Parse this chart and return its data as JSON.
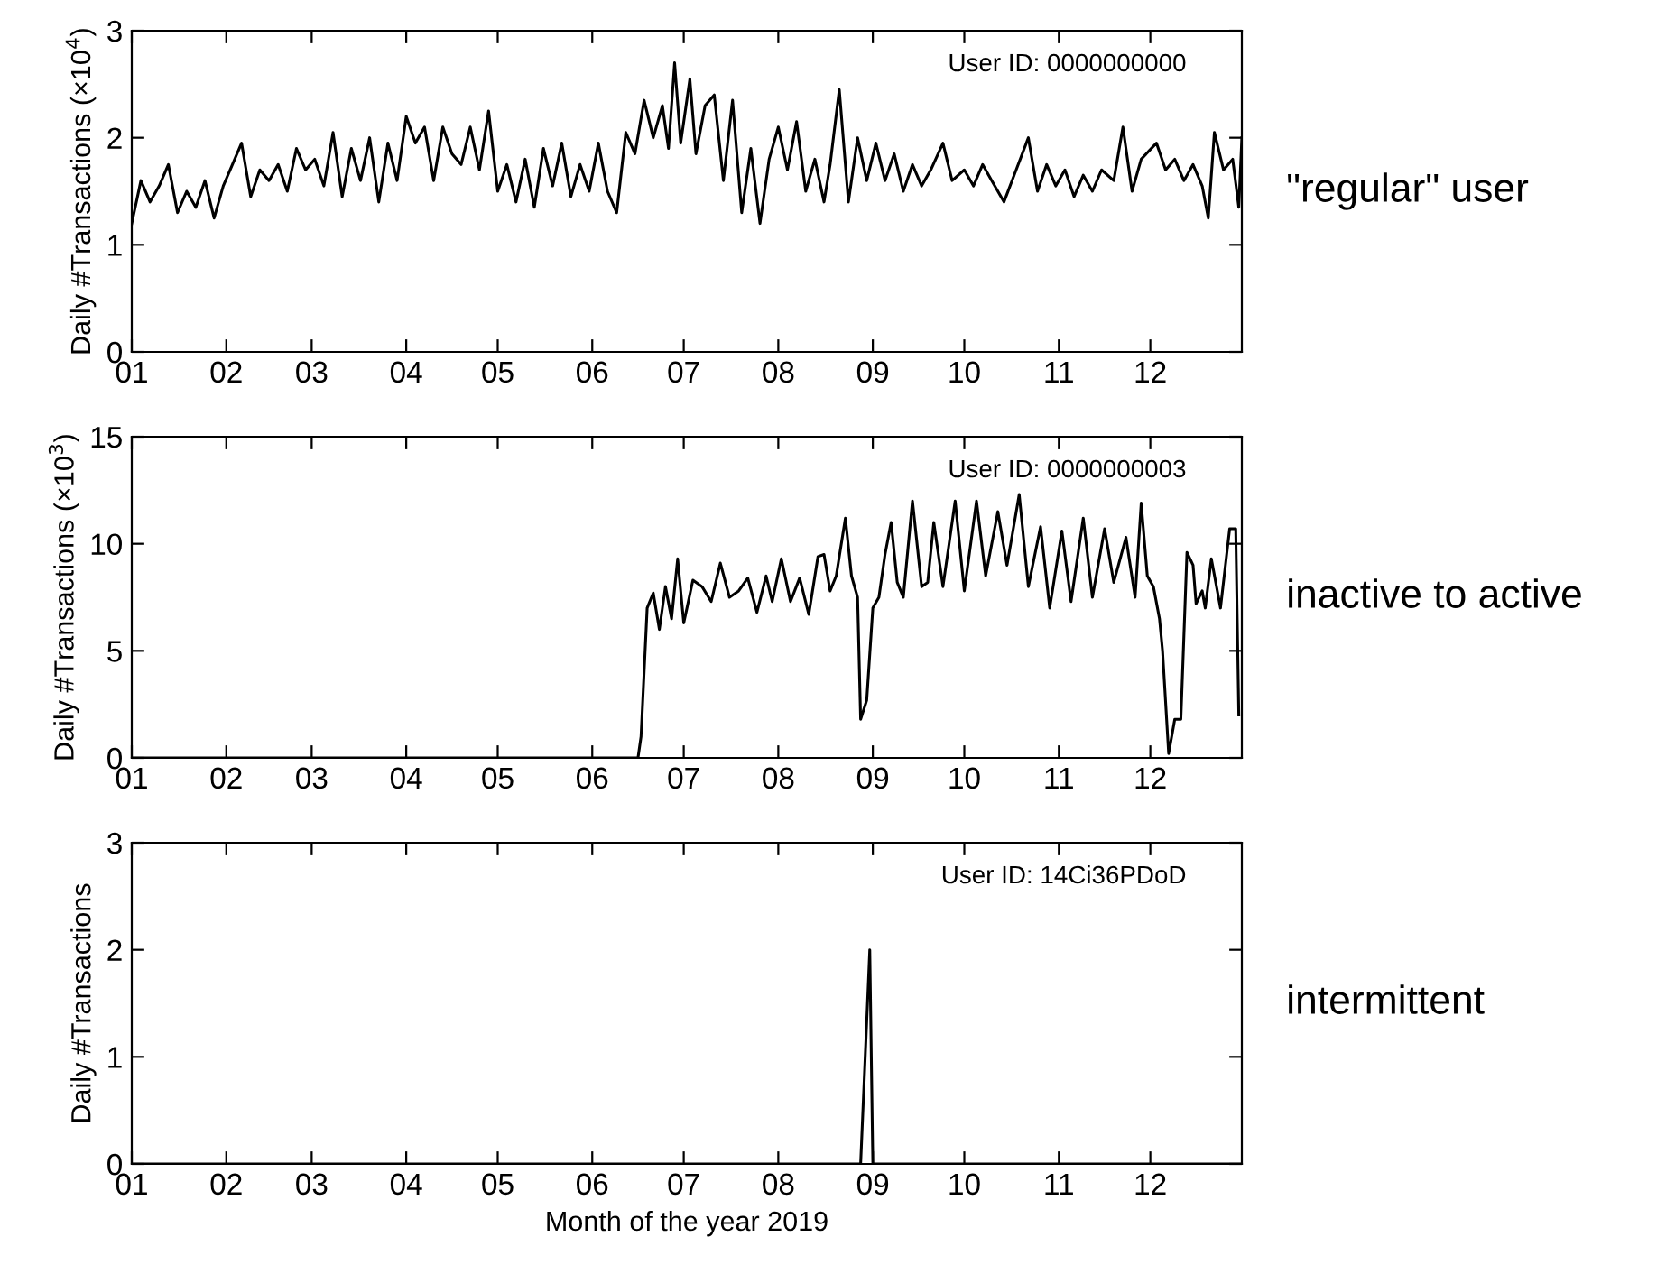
{
  "chart_data": [
    {
      "type": "line",
      "ylabel": "Daily #Transactions (×10$^{4}$)",
      "annotations": [
        "User ID: 0000000000",
        "\"regular\" user"
      ],
      "xlim": [
        "2019-01-01",
        "2019-12-31"
      ],
      "xticks": [
        {
          "value": "2019-01-01",
          "label": "01"
        },
        {
          "value": "2019-02-01",
          "label": "02"
        },
        {
          "value": "2019-03-01",
          "label": "03"
        },
        {
          "value": "2019-04-01",
          "label": "04"
        },
        {
          "value": "2019-05-01",
          "label": "05"
        },
        {
          "value": "2019-06-01",
          "label": "06"
        },
        {
          "value": "2019-07-01",
          "label": "07"
        },
        {
          "value": "2019-08-01",
          "label": "08"
        },
        {
          "value": "2019-09-01",
          "label": "09"
        },
        {
          "value": "2019-10-01",
          "label": "10"
        },
        {
          "value": "2019-11-01",
          "label": "11"
        },
        {
          "value": "2019-12-01",
          "label": "12"
        }
      ],
      "ylim": [
        0,
        3
      ],
      "yticks": [
        0,
        1,
        2,
        3
      ],
      "series": [
        {
          "color": "#000000",
          "x": [
            "2019-01-01",
            "2019-01-04",
            "2019-01-07",
            "2019-01-10",
            "2019-01-13",
            "2019-01-16",
            "2019-01-19",
            "2019-01-22",
            "2019-01-25",
            "2019-01-28",
            "2019-01-31",
            "2019-02-03",
            "2019-02-06",
            "2019-02-09",
            "2019-02-12",
            "2019-02-15",
            "2019-02-18",
            "2019-02-21",
            "2019-02-24",
            "2019-02-27",
            "2019-03-02",
            "2019-03-05",
            "2019-03-08",
            "2019-03-11",
            "2019-03-14",
            "2019-03-17",
            "2019-03-20",
            "2019-03-23",
            "2019-03-26",
            "2019-03-29",
            "2019-04-01",
            "2019-04-04",
            "2019-04-07",
            "2019-04-10",
            "2019-04-13",
            "2019-04-16",
            "2019-04-19",
            "2019-04-22",
            "2019-04-25",
            "2019-04-28",
            "2019-05-01",
            "2019-05-04",
            "2019-05-07",
            "2019-05-10",
            "2019-05-13",
            "2019-05-16",
            "2019-05-19",
            "2019-05-22",
            "2019-05-25",
            "2019-05-28",
            "2019-05-31",
            "2019-06-03",
            "2019-06-06",
            "2019-06-09",
            "2019-06-12",
            "2019-06-15",
            "2019-06-18",
            "2019-06-21",
            "2019-06-24",
            "2019-06-26",
            "2019-06-28",
            "2019-06-30",
            "2019-07-03",
            "2019-07-05",
            "2019-07-08",
            "2019-07-11",
            "2019-07-14",
            "2019-07-17",
            "2019-07-20",
            "2019-07-23",
            "2019-07-26",
            "2019-07-29",
            "2019-08-01",
            "2019-08-04",
            "2019-08-07",
            "2019-08-10",
            "2019-08-13",
            "2019-08-16",
            "2019-08-18",
            "2019-08-21",
            "2019-08-24",
            "2019-08-27",
            "2019-08-30",
            "2019-09-02",
            "2019-09-05",
            "2019-09-08",
            "2019-09-11",
            "2019-09-14",
            "2019-09-17",
            "2019-09-20",
            "2019-09-24",
            "2019-09-27",
            "2019-10-01",
            "2019-10-04",
            "2019-10-07",
            "2019-10-10",
            "2019-10-14",
            "2019-10-18",
            "2019-10-22",
            "2019-10-25",
            "2019-10-28",
            "2019-10-31",
            "2019-11-03",
            "2019-11-06",
            "2019-11-09",
            "2019-11-12",
            "2019-11-15",
            "2019-11-19",
            "2019-11-22",
            "2019-11-25",
            "2019-11-28",
            "2019-12-03",
            "2019-12-06",
            "2019-12-09",
            "2019-12-12",
            "2019-12-15",
            "2019-12-18",
            "2019-12-20",
            "2019-12-22",
            "2019-12-25",
            "2019-12-28",
            "2019-12-30",
            "2019-12-31"
          ],
          "values": [
            1.2,
            1.6,
            1.4,
            1.55,
            1.75,
            1.3,
            1.5,
            1.35,
            1.6,
            1.25,
            1.55,
            1.75,
            1.95,
            1.45,
            1.7,
            1.6,
            1.75,
            1.5,
            1.9,
            1.7,
            1.8,
            1.55,
            2.05,
            1.45,
            1.9,
            1.6,
            2.0,
            1.4,
            1.95,
            1.6,
            2.2,
            1.95,
            2.1,
            1.6,
            2.1,
            1.85,
            1.75,
            2.1,
            1.7,
            2.25,
            1.5,
            1.75,
            1.4,
            1.8,
            1.35,
            1.9,
            1.55,
            1.95,
            1.45,
            1.75,
            1.5,
            1.95,
            1.5,
            1.3,
            2.05,
            1.85,
            2.35,
            2.0,
            2.3,
            1.9,
            2.7,
            1.95,
            2.55,
            1.85,
            2.3,
            2.4,
            1.6,
            2.35,
            1.3,
            1.9,
            1.2,
            1.8,
            2.1,
            1.7,
            2.15,
            1.5,
            1.8,
            1.4,
            1.75,
            2.45,
            1.4,
            2.0,
            1.6,
            1.95,
            1.6,
            1.85,
            1.5,
            1.75,
            1.55,
            1.7,
            1.95,
            1.6,
            1.7,
            1.55,
            1.75,
            1.6,
            1.4,
            1.7,
            2.0,
            1.5,
            1.75,
            1.55,
            1.7,
            1.45,
            1.65,
            1.5,
            1.7,
            1.6,
            2.1,
            1.5,
            1.8,
            1.95,
            1.7,
            1.8,
            1.6,
            1.75,
            1.55,
            1.25,
            2.05,
            1.7,
            1.8,
            1.35,
            2.0
          ]
        }
      ]
    },
    {
      "type": "line",
      "ylabel": "Daily #Transactions (×10$^{3}$)",
      "annotations": [
        "User ID: 0000000003",
        "inactive to active"
      ],
      "xlim": [
        "2019-01-01",
        "2019-12-31"
      ],
      "xticks": [
        {
          "value": "2019-01-01",
          "label": "01"
        },
        {
          "value": "2019-02-01",
          "label": "02"
        },
        {
          "value": "2019-03-01",
          "label": "03"
        },
        {
          "value": "2019-04-01",
          "label": "04"
        },
        {
          "value": "2019-05-01",
          "label": "05"
        },
        {
          "value": "2019-06-01",
          "label": "06"
        },
        {
          "value": "2019-07-01",
          "label": "07"
        },
        {
          "value": "2019-08-01",
          "label": "08"
        },
        {
          "value": "2019-09-01",
          "label": "09"
        },
        {
          "value": "2019-10-01",
          "label": "10"
        },
        {
          "value": "2019-11-01",
          "label": "11"
        },
        {
          "value": "2019-12-01",
          "label": "12"
        }
      ],
      "ylim": [
        0,
        15
      ],
      "yticks": [
        0,
        5,
        10,
        15
      ],
      "series": [
        {
          "color": "#000000",
          "x": [
            "2019-01-01",
            "2019-06-16",
            "2019-06-17",
            "2019-06-19",
            "2019-06-21",
            "2019-06-23",
            "2019-06-25",
            "2019-06-27",
            "2019-06-29",
            "2019-07-01",
            "2019-07-04",
            "2019-07-07",
            "2019-07-10",
            "2019-07-13",
            "2019-07-16",
            "2019-07-19",
            "2019-07-22",
            "2019-07-25",
            "2019-07-28",
            "2019-07-30",
            "2019-08-02",
            "2019-08-05",
            "2019-08-08",
            "2019-08-11",
            "2019-08-14",
            "2019-08-16",
            "2019-08-18",
            "2019-08-20",
            "2019-08-23",
            "2019-08-25",
            "2019-08-27",
            "2019-08-28",
            "2019-08-30",
            "2019-09-01",
            "2019-09-03",
            "2019-09-05",
            "2019-09-07",
            "2019-09-09",
            "2019-09-11",
            "2019-09-14",
            "2019-09-17",
            "2019-09-19",
            "2019-09-21",
            "2019-09-24",
            "2019-09-28",
            "2019-10-01",
            "2019-10-05",
            "2019-10-08",
            "2019-10-12",
            "2019-10-15",
            "2019-10-19",
            "2019-10-22",
            "2019-10-26",
            "2019-10-29",
            "2019-11-02",
            "2019-11-05",
            "2019-11-09",
            "2019-11-12",
            "2019-11-16",
            "2019-11-19",
            "2019-11-23",
            "2019-11-26",
            "2019-11-28",
            "2019-11-30",
            "2019-12-02",
            "2019-12-04",
            "2019-12-05",
            "2019-12-07",
            "2019-12-09",
            "2019-12-11",
            "2019-12-13",
            "2019-12-15",
            "2019-12-16",
            "2019-12-18",
            "2019-12-19",
            "2019-12-21",
            "2019-12-24",
            "2019-12-27",
            "2019-12-29",
            "2019-12-30"
          ],
          "values": [
            0,
            0,
            1,
            7,
            7.7,
            6,
            8,
            6.5,
            9.3,
            6.3,
            8.3,
            8,
            7.3,
            9.1,
            7.5,
            7.8,
            8.4,
            6.8,
            8.5,
            7.3,
            9.3,
            7.3,
            8.4,
            6.7,
            9.4,
            9.5,
            7.8,
            8.5,
            11.2,
            8.5,
            7.5,
            1.8,
            2.7,
            7,
            7.5,
            9.5,
            11,
            8.2,
            7.5,
            12,
            8,
            8.2,
            11,
            8,
            12,
            7.8,
            12,
            8.5,
            11.5,
            9,
            12.3,
            8,
            10.8,
            7,
            10.6,
            7.3,
            11.2,
            7.5,
            10.7,
            8.2,
            10.3,
            7.5,
            11.9,
            8.5,
            8,
            6.5,
            5,
            0.2,
            1.8,
            1.8,
            9.6,
            9,
            7.2,
            7.8,
            7,
            9.3,
            7,
            10.7,
            10.7,
            2
          ]
        }
      ]
    },
    {
      "type": "line",
      "ylabel": "Daily #Transactions",
      "xlabel": "Month of the year 2019",
      "annotations": [
        "User ID: 14Ci36PDoD",
        "intermittent"
      ],
      "xlim": [
        "2019-01-01",
        "2019-12-31"
      ],
      "xticks": [
        {
          "value": "2019-01-01",
          "label": "01"
        },
        {
          "value": "2019-02-01",
          "label": "02"
        },
        {
          "value": "2019-03-01",
          "label": "03"
        },
        {
          "value": "2019-04-01",
          "label": "04"
        },
        {
          "value": "2019-05-01",
          "label": "05"
        },
        {
          "value": "2019-06-01",
          "label": "06"
        },
        {
          "value": "2019-07-01",
          "label": "07"
        },
        {
          "value": "2019-08-01",
          "label": "08"
        },
        {
          "value": "2019-09-01",
          "label": "09"
        },
        {
          "value": "2019-10-01",
          "label": "10"
        },
        {
          "value": "2019-11-01",
          "label": "11"
        },
        {
          "value": "2019-12-01",
          "label": "12"
        }
      ],
      "ylim": [
        0,
        3
      ],
      "yticks": [
        0,
        1,
        2,
        3
      ],
      "series": [
        {
          "color": "#000000",
          "x": [
            "2019-01-01",
            "2019-08-28",
            "2019-08-31",
            "2019-09-01",
            "2019-12-31"
          ],
          "values": [
            0,
            0,
            2,
            0,
            0
          ]
        }
      ]
    }
  ]
}
